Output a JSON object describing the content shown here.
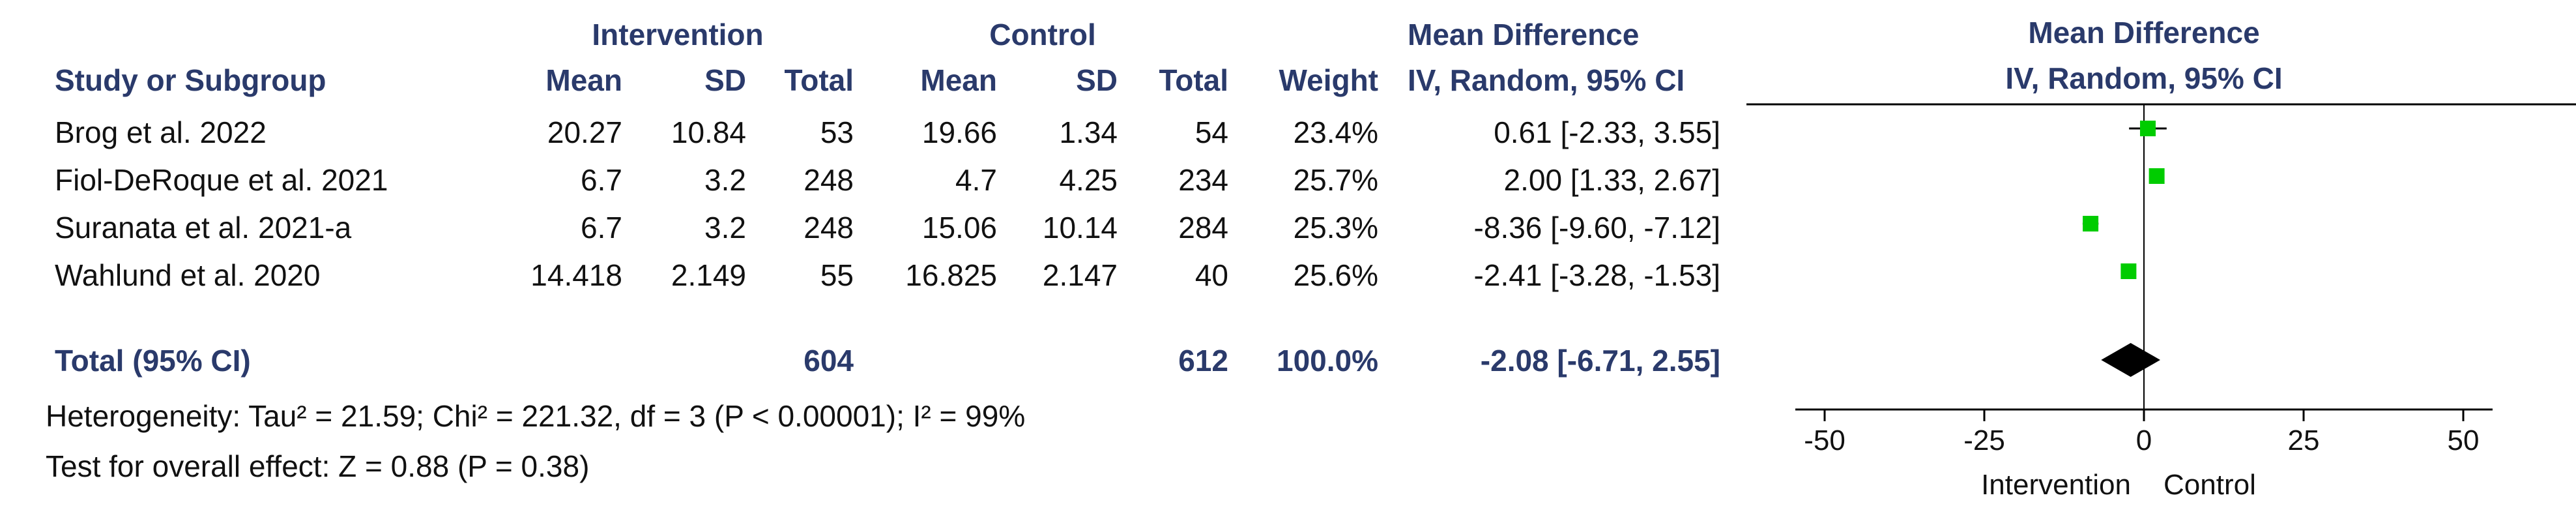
{
  "headers": {
    "group_intervention": "Intervention",
    "group_control": "Control",
    "study": "Study or Subgroup",
    "mean": "Mean",
    "sd": "SD",
    "total": "Total",
    "weight": "Weight",
    "md_title": "Mean Difference",
    "md_method": "IV, Random, 95% CI",
    "plot_title": "Mean Difference",
    "plot_method": "IV, Random, 95% CI"
  },
  "studies": [
    {
      "name": "Brog et al. 2022",
      "i_mean": "20.27",
      "i_sd": "10.84",
      "i_total": "53",
      "c_mean": "19.66",
      "c_sd": "1.34",
      "c_total": "54",
      "weight": "23.4%",
      "ci_text": "0.61 [-2.33, 3.55]"
    },
    {
      "name": "Fiol-DeRoque et al. 2021",
      "i_mean": "6.7",
      "i_sd": "3.2",
      "i_total": "248",
      "c_mean": "4.7",
      "c_sd": "4.25",
      "c_total": "234",
      "weight": "25.7%",
      "ci_text": "2.00 [1.33, 2.67]"
    },
    {
      "name": "Suranata et al. 2021-a",
      "i_mean": "6.7",
      "i_sd": "3.2",
      "i_total": "248",
      "c_mean": "15.06",
      "c_sd": "10.14",
      "c_total": "284",
      "weight": "25.3%",
      "ci_text": "-8.36 [-9.60, -7.12]"
    },
    {
      "name": "Wahlund et al. 2020",
      "i_mean": "14.418",
      "i_sd": "2.149",
      "i_total": "55",
      "c_mean": "16.825",
      "c_sd": "2.147",
      "c_total": "40",
      "weight": "25.6%",
      "ci_text": "-2.41 [-3.28, -1.53]"
    }
  ],
  "total": {
    "label": "Total (95% CI)",
    "i_total": "604",
    "c_total": "612",
    "weight": "100.0%",
    "ci_text": "-2.08 [-6.71, 2.55]"
  },
  "heterogeneity": "Heterogeneity: Tau² = 21.59; Chi² = 221.32, df = 3 (P < 0.00001); I² = 99%",
  "overall_effect": "Test for overall effect: Z = 0.88 (P = 0.38)",
  "chart_data": {
    "type": "forest",
    "x_ticks": [
      -50,
      -25,
      0,
      25,
      50
    ],
    "x_tick_labels": [
      "-50",
      "-25",
      "0",
      "25",
      "50"
    ],
    "xlim": [
      -50,
      50
    ],
    "favours_left": "Intervention",
    "favours_right": "Control",
    "studies": [
      {
        "name": "Brog et al. 2022",
        "md": 0.61,
        "lower": -2.33,
        "upper": 3.55,
        "weight": 23.4
      },
      {
        "name": "Fiol-DeRoque et al. 2021",
        "md": 2.0,
        "lower": 1.33,
        "upper": 2.67,
        "weight": 25.7
      },
      {
        "name": "Suranata et al. 2021-a",
        "md": -8.36,
        "lower": -9.6,
        "upper": -7.12,
        "weight": 25.3
      },
      {
        "name": "Wahlund et al. 2020",
        "md": -2.41,
        "lower": -3.28,
        "upper": -1.53,
        "weight": 25.6
      }
    ],
    "pooled": {
      "md": -2.08,
      "lower": -6.71,
      "upper": 2.55
    },
    "marker_color": "#00cc00"
  }
}
